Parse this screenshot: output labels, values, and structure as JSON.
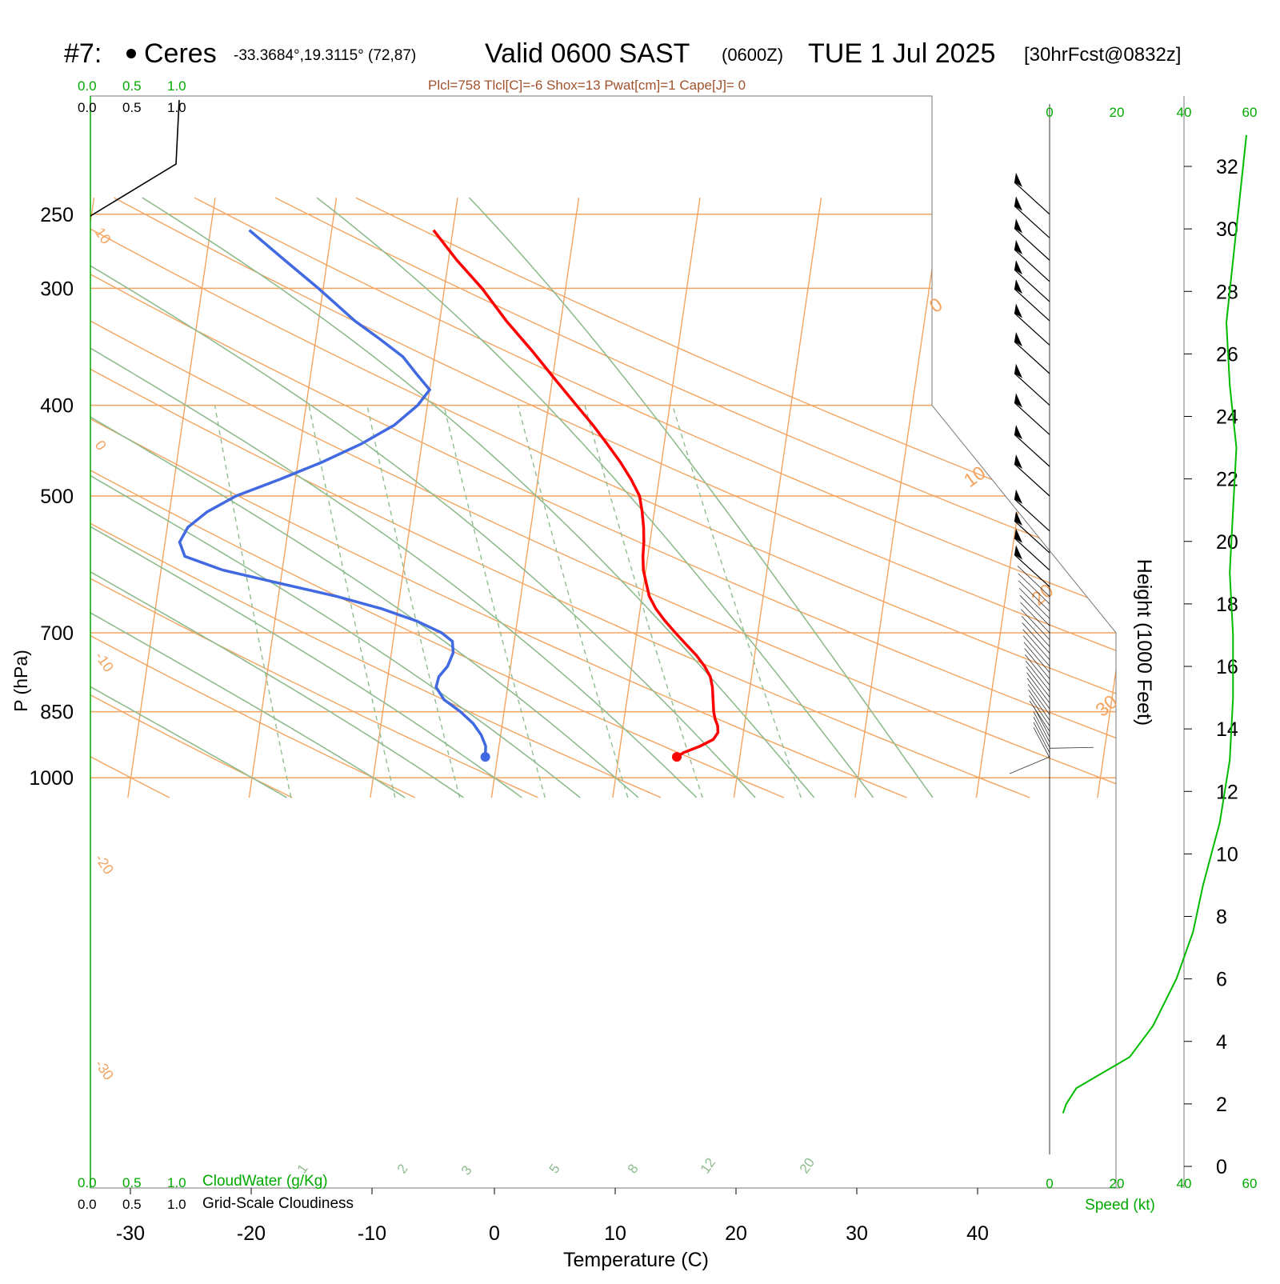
{
  "header": {
    "station_num": "#7:",
    "station_name": "Ceres",
    "coords": "-33.3684°,19.3115° (72,87)",
    "valid": "Valid 0600 SAST",
    "zulu": "(0600Z)",
    "date": "TUE 1 Jul 2025",
    "forecast": "[30hrFcst@0832z]",
    "indices": "Plcl=758 Tlcl[C]=-6 Shox=13 Pwat[cm]=1 Cape[J]= 0"
  },
  "left_scales": {
    "cloudwater_ticks": [
      "0.0",
      "0.5",
      "1.0"
    ],
    "cloudiness_ticks": [
      "0.0",
      "0.5",
      "1.0"
    ],
    "cloudwater_label": "CloudWater (g/Kg)",
    "cloudiness_label": "Grid-Scale Cloudiness"
  },
  "speed_axis": {
    "ticks": [
      "0",
      "20",
      "40",
      "60"
    ],
    "label": "Speed (kt)"
  },
  "colors": {
    "temperature": "#ff0000",
    "dewpoint": "#4169e1",
    "isotherm": "#f4a460",
    "dry_adiabat": "#f4a460",
    "moist_adiabat": "#8fbc8f",
    "mixing_ratio": "#8fbc8f",
    "speed": "#00bb00",
    "header_indices": "#a0522d",
    "scale_green": "#00aa00"
  },
  "chart_data": {
    "type": "line",
    "subtype": "skew-T log-P sounding",
    "xlabel": "Temperature (C)",
    "ylabel": "P (hPa)",
    "y2label": "Height (1000 Feet)",
    "x_ticks": [
      -30,
      -20,
      -10,
      0,
      10,
      20,
      30,
      40
    ],
    "y_ticks": [
      250,
      300,
      400,
      500,
      700,
      850,
      1000
    ],
    "height_ticks": [
      0,
      2,
      4,
      6,
      8,
      10,
      12,
      14,
      16,
      18,
      20,
      22,
      24,
      26,
      28,
      30,
      32
    ],
    "ylim_hpa": [
      250,
      1050
    ],
    "log_scale_y": true,
    "mixing_ratio_labels": [
      "1",
      "2",
      "3",
      "5",
      "8",
      "12",
      "20"
    ],
    "dry_adiabat_labels": [
      "10",
      "0",
      "-10",
      "-20",
      "-30"
    ],
    "moist_adiabat_labels": [
      "0",
      "10",
      "20",
      "30"
    ],
    "series": [
      {
        "name": "Temperature",
        "points": [
          [
            950,
            14.8
          ],
          [
            940,
            15.3
          ],
          [
            925,
            16.6
          ],
          [
            910,
            17.6
          ],
          [
            895,
            17.9
          ],
          [
            880,
            17.8
          ],
          [
            865,
            17.5
          ],
          [
            850,
            17.3
          ],
          [
            800,
            16.9
          ],
          [
            780,
            16.6
          ],
          [
            760,
            16.0
          ],
          [
            740,
            15.2
          ],
          [
            720,
            14.2
          ],
          [
            700,
            13.2
          ],
          [
            680,
            12.2
          ],
          [
            660,
            11.3
          ],
          [
            640,
            10.6
          ],
          [
            620,
            10.2
          ],
          [
            600,
            9.8
          ],
          [
            580,
            9.6
          ],
          [
            560,
            9.5
          ],
          [
            540,
            9.3
          ],
          [
            520,
            9.0
          ],
          [
            500,
            8.6
          ],
          [
            480,
            7.7
          ],
          [
            460,
            6.6
          ],
          [
            440,
            5.3
          ],
          [
            420,
            3.9
          ],
          [
            400,
            2.3
          ],
          [
            375,
            0.2
          ],
          [
            350,
            -2.0
          ],
          [
            325,
            -4.5
          ],
          [
            300,
            -6.9
          ],
          [
            280,
            -9.3
          ],
          [
            260,
            -11.6
          ]
        ]
      },
      {
        "name": "Dewpoint",
        "points": [
          [
            950,
            -1.0
          ],
          [
            925,
            -1.1
          ],
          [
            900,
            -1.6
          ],
          [
            875,
            -2.4
          ],
          [
            850,
            -3.6
          ],
          [
            825,
            -5.1
          ],
          [
            800,
            -5.9
          ],
          [
            780,
            -5.8
          ],
          [
            760,
            -5.2
          ],
          [
            735,
            -4.9
          ],
          [
            715,
            -5.1
          ],
          [
            700,
            -6.1
          ],
          [
            680,
            -8.3
          ],
          [
            660,
            -11.3
          ],
          [
            640,
            -15.2
          ],
          [
            620,
            -20.0
          ],
          [
            600,
            -24.9
          ],
          [
            580,
            -28.2
          ],
          [
            560,
            -28.8
          ],
          [
            540,
            -28.3
          ],
          [
            520,
            -26.9
          ],
          [
            500,
            -24.7
          ],
          [
            480,
            -21.3
          ],
          [
            460,
            -18.0
          ],
          [
            440,
            -15.0
          ],
          [
            420,
            -12.5
          ],
          [
            400,
            -10.8
          ],
          [
            385,
            -10.0
          ],
          [
            370,
            -11.3
          ],
          [
            355,
            -12.6
          ],
          [
            340,
            -14.7
          ],
          [
            325,
            -17.0
          ],
          [
            300,
            -20.4
          ],
          [
            280,
            -23.5
          ],
          [
            260,
            -26.8
          ]
        ]
      },
      {
        "name": "Wind speed",
        "points_kt": [
          [
            1.7,
            4
          ],
          [
            2.0,
            5
          ],
          [
            2.5,
            8
          ],
          [
            3.0,
            16
          ],
          [
            3.5,
            24
          ],
          [
            4.5,
            31
          ],
          [
            6.0,
            38
          ],
          [
            7.5,
            43
          ],
          [
            9.0,
            46
          ],
          [
            11.0,
            51
          ],
          [
            13.0,
            54
          ],
          [
            15.0,
            55
          ],
          [
            17.0,
            55
          ],
          [
            19.0,
            54
          ],
          [
            21.0,
            55
          ],
          [
            23.0,
            56
          ],
          [
            25.0,
            54
          ],
          [
            27.0,
            53
          ],
          [
            29.0,
            55
          ],
          [
            31.0,
            57
          ],
          [
            33.0,
            59
          ]
        ]
      }
    ],
    "wind_barbs": [
      {
        "p": 250,
        "dir": 305,
        "spd": 55
      },
      {
        "p": 265,
        "dir": 305,
        "spd": 55
      },
      {
        "p": 280,
        "dir": 305,
        "spd": 55
      },
      {
        "p": 295,
        "dir": 305,
        "spd": 55
      },
      {
        "p": 310,
        "dir": 305,
        "spd": 55
      },
      {
        "p": 325,
        "dir": 305,
        "spd": 55
      },
      {
        "p": 345,
        "dir": 305,
        "spd": 55
      },
      {
        "p": 370,
        "dir": 305,
        "spd": 55
      },
      {
        "p": 400,
        "dir": 305,
        "spd": 55
      },
      {
        "p": 430,
        "dir": 305,
        "spd": 55
      },
      {
        "p": 465,
        "dir": 305,
        "spd": 55
      },
      {
        "p": 500,
        "dir": 305,
        "spd": 55
      },
      {
        "p": 545,
        "dir": 305,
        "spd": 55
      },
      {
        "p": 575,
        "dir": 305,
        "spd": 55
      },
      {
        "p": 600,
        "dir": 305,
        "spd": 55
      },
      {
        "p": 625,
        "dir": 305,
        "spd": 55
      }
    ]
  }
}
